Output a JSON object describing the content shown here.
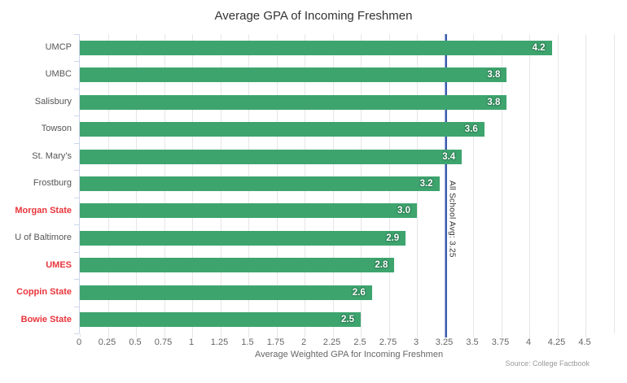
{
  "title": "Average GPA of Incoming Freshmen",
  "source": "Source: College Factbook",
  "chart_data": {
    "type": "bar",
    "orientation": "horizontal",
    "title": "Average GPA of Incoming Freshmen",
    "xlabel": "Average Weighted GPA for Incoming Freshmen",
    "ylabel": "",
    "xlim": [
      0,
      4.5
    ],
    "grid": true,
    "categories": [
      "UMCP",
      "UMBC",
      "Salisbury",
      "Towson",
      "St. Mary’s",
      "Frostburg",
      "Morgan State",
      "U of Baltimore",
      "UMES",
      "Coppin State",
      "Bowie State"
    ],
    "values": [
      4.2,
      3.8,
      3.8,
      3.6,
      3.4,
      3.2,
      3.0,
      2.9,
      2.8,
      2.6,
      2.5
    ],
    "value_labels": [
      "4.2",
      "3.8",
      "3.8",
      "3.6",
      "3.4",
      "3.2",
      "3.0",
      "2.9",
      "2.8",
      "2.6",
      "2.5"
    ],
    "highlight": [
      false,
      false,
      false,
      false,
      false,
      false,
      true,
      false,
      true,
      true,
      true
    ],
    "x_ticks": [
      "0",
      "0.25",
      "0.5",
      "0.75",
      "1",
      "1.25",
      "1.5",
      "1.75",
      "2",
      "2.25",
      "2.5",
      "2.75",
      "3",
      "3.25",
      "3.5",
      "3.75",
      "4",
      "4.25",
      "4.5"
    ],
    "plotline": {
      "value": 3.25,
      "label": "All School Avg: 3.25",
      "color": "#3d5dae"
    },
    "bar_color": "#3EA46E",
    "label_color": "#555555",
    "highlight_label_color": "#E8353C"
  }
}
